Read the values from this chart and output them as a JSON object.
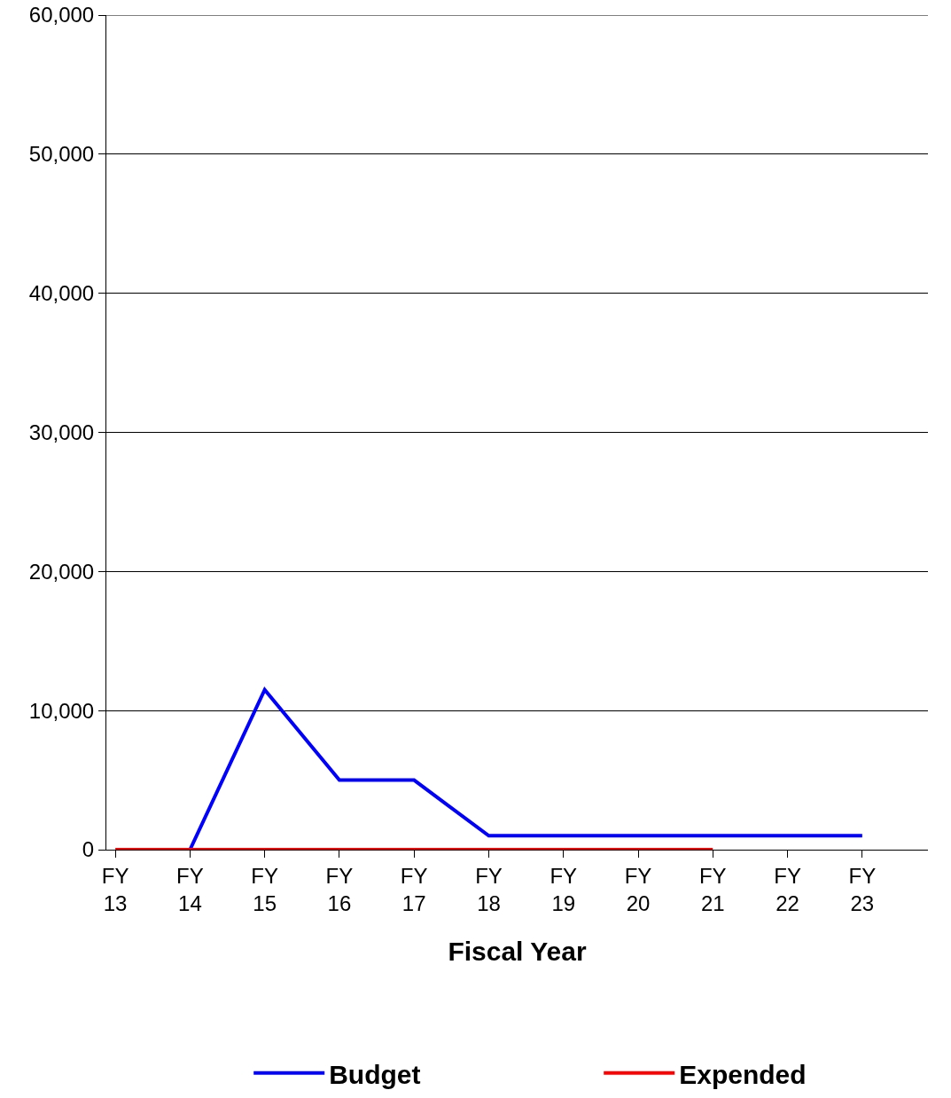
{
  "chart_data": {
    "type": "line",
    "xlabel": "Fiscal Year",
    "categories": [
      "FY 13",
      "FY 14",
      "FY 15",
      "FY 16",
      "FY 17",
      "FY 18",
      "FY 19",
      "FY 20",
      "FY 21",
      "FY 22",
      "FY 23"
    ],
    "series": [
      {
        "name": "Budget",
        "color": "#0000ff",
        "values": [
          null,
          0,
          11500,
          5000,
          5000,
          1000,
          1000,
          1000,
          1000,
          1000,
          1000
        ]
      },
      {
        "name": "Expended",
        "color": "#ff0000",
        "values": [
          0,
          0,
          0,
          0,
          0,
          0,
          0,
          0,
          0,
          null,
          null
        ]
      }
    ],
    "ylim": [
      0,
      60000
    ],
    "yticks": [
      {
        "value": 0,
        "label": "0"
      },
      {
        "value": 10000,
        "label": "10,000"
      },
      {
        "value": 20000,
        "label": "20,000"
      },
      {
        "value": 30000,
        "label": "30,000"
      },
      {
        "value": 40000,
        "label": "40,000"
      },
      {
        "value": 50000,
        "label": "50,000"
      },
      {
        "value": 60000,
        "label": "60,000"
      }
    ],
    "grid": "y",
    "legend": "bottom",
    "marker": "none",
    "line_style": "solid"
  }
}
